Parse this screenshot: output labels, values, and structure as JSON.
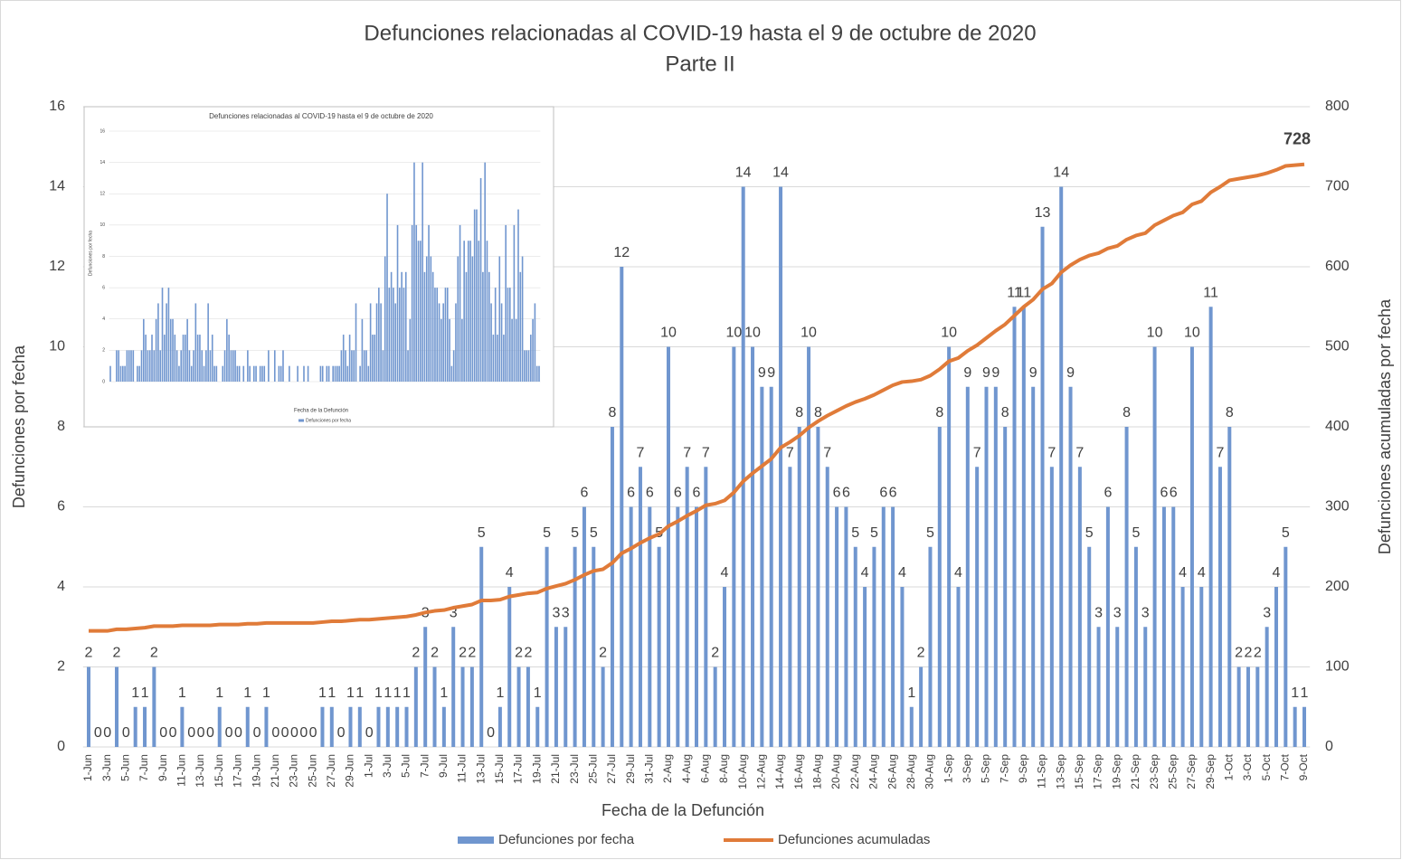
{
  "chart_data": [
    {
      "type": "bar",
      "title": "Defunciones relacionadas al COVID-19 hasta el 9 de octubre de 2020",
      "subtitle": "Parte II",
      "x_label": "Fecha de la Defunción",
      "y_label": "Defunciones por fecha",
      "y2_label": "Defunciones acumuladas por fecha",
      "categories": [
        "1-Jun",
        null,
        "3-Jun",
        null,
        "5-Jun",
        null,
        "7-Jun",
        null,
        "9-Jun",
        null,
        "11-Jun",
        null,
        "13-Jun",
        null,
        "15-Jun",
        null,
        "17-Jun",
        null,
        "19-Jun",
        null,
        "21-Jun",
        null,
        "23-Jun",
        null,
        "25-Jun",
        null,
        "27-Jun",
        null,
        "29-Jun",
        null,
        "1-Jul",
        null,
        "3-Jul",
        null,
        "5-Jul",
        null,
        "7-Jul",
        null,
        "9-Jul",
        null,
        "11-Jul",
        null,
        "13-Jul",
        null,
        "15-Jul",
        null,
        "17-Jul",
        null,
        "19-Jul",
        null,
        "21-Jul",
        null,
        "23-Jul",
        null,
        "25-Jul",
        null,
        "27-Jul",
        null,
        "29-Jul",
        null,
        "31-Jul",
        null,
        "2-Aug",
        null,
        "4-Aug",
        null,
        "6-Aug",
        null,
        "8-Aug",
        null,
        "10-Aug",
        null,
        "12-Aug",
        null,
        "14-Aug",
        null,
        "16-Aug",
        null,
        "18-Aug",
        null,
        "20-Aug",
        null,
        "22-Aug",
        null,
        "24-Aug",
        null,
        "26-Aug",
        null,
        "28-Aug",
        null,
        "30-Aug",
        null,
        "1-Sep",
        null,
        "3-Sep",
        null,
        "5-Sep",
        null,
        "7-Sep",
        null,
        "9-Sep",
        null,
        "11-Sep",
        null,
        "13-Sep",
        null,
        "15-Sep",
        null,
        "17-Sep",
        null,
        "19-Sep",
        null,
        "21-Sep",
        null,
        "23-Sep",
        null,
        "25-Sep",
        null,
        "27-Sep",
        null,
        "29-Sep",
        null,
        "1-Oct",
        null,
        "3-Oct",
        null,
        "5-Oct",
        null,
        "7-Oct",
        null,
        "9-Oct"
      ],
      "series": [
        {
          "name": "Defunciones por fecha",
          "type": "bar",
          "color": "#7096cf",
          "values": [
            2,
            0,
            0,
            2,
            0,
            1,
            1,
            2,
            0,
            0,
            1,
            0,
            0,
            0,
            1,
            0,
            0,
            1,
            0,
            1,
            0,
            0,
            0,
            0,
            0,
            1,
            1,
            0,
            1,
            1,
            0,
            1,
            1,
            1,
            1,
            2,
            3,
            2,
            1,
            3,
            2,
            2,
            5,
            0,
            1,
            4,
            2,
            2,
            1,
            5,
            3,
            3,
            5,
            6,
            5,
            2,
            8,
            12,
            6,
            7,
            6,
            5,
            10,
            6,
            7,
            6,
            7,
            2,
            4,
            10,
            14,
            10,
            9,
            9,
            14,
            7,
            8,
            10,
            8,
            7,
            6,
            6,
            5,
            4,
            5,
            6,
            6,
            4,
            1,
            2,
            5,
            8,
            10,
            4,
            9,
            7,
            9,
            9,
            8,
            11,
            11,
            9,
            13,
            7,
            14,
            9,
            7,
            5,
            3,
            6,
            3,
            8,
            5,
            3,
            10,
            6,
            6,
            4,
            10,
            4,
            11,
            7,
            8,
            2,
            2,
            2,
            3,
            4,
            5,
            1,
            1
          ]
        },
        {
          "name": "Defunciones acumuladas",
          "type": "line",
          "axis": "y2",
          "color": "#e07b39",
          "values": [
            145,
            145,
            145,
            147,
            147,
            148,
            149,
            151,
            151,
            151,
            152,
            152,
            152,
            152,
            153,
            153,
            153,
            154,
            154,
            155,
            155,
            155,
            155,
            155,
            155,
            156,
            157,
            157,
            158,
            159,
            159,
            160,
            161,
            162,
            163,
            165,
            168,
            170,
            171,
            174,
            176,
            178,
            183,
            183,
            184,
            188,
            190,
            192,
            193,
            198,
            201,
            204,
            209,
            215,
            220,
            222,
            230,
            242,
            248,
            255,
            261,
            266,
            276,
            282,
            289,
            295,
            302,
            304,
            308,
            318,
            332,
            342,
            351,
            360,
            374,
            381,
            389,
            399,
            407,
            414,
            420,
            426,
            431,
            435,
            440,
            446,
            452,
            456,
            457,
            459,
            464,
            472,
            482,
            486,
            495,
            502,
            511,
            520,
            528,
            539,
            550,
            559,
            572,
            579,
            593,
            602,
            609,
            614,
            617,
            623,
            626,
            634,
            639,
            642,
            652,
            658,
            664,
            668,
            678,
            682,
            693,
            700,
            708,
            710,
            712,
            714,
            717,
            721,
            726,
            727,
            728
          ]
        }
      ],
      "ylim": [
        0,
        16
      ],
      "yticks": [
        0,
        2,
        4,
        6,
        8,
        10,
        12,
        14,
        16
      ],
      "y2lim": [
        0,
        800
      ],
      "y2ticks": [
        0,
        100,
        200,
        300,
        400,
        500,
        600,
        700,
        800
      ],
      "grid": true,
      "legend": "bottom"
    },
    {
      "type": "bar",
      "title": "Defunciones relacionadas al COVID-19 hasta el 9 de octubre de 2020",
      "x_label": "Fecha de la Defunción",
      "y_label": "Defunciones por fecha",
      "series": [
        {
          "name": "Defunciones por fecha",
          "type": "bar",
          "color": "#7096cf",
          "values": [
            1,
            0,
            0,
            2,
            2,
            1,
            1,
            1,
            2,
            2,
            2,
            2,
            0,
            1,
            1,
            2,
            4,
            3,
            2,
            2,
            3,
            2,
            4,
            5,
            2,
            6,
            3,
            5,
            6,
            4,
            4,
            3,
            2,
            1,
            2,
            3,
            3,
            4,
            2,
            1,
            2,
            5,
            3,
            3,
            2,
            1,
            2,
            5,
            2,
            3,
            1,
            1,
            0,
            0,
            1,
            2,
            4,
            3,
            2,
            2,
            2,
            1,
            1,
            0,
            1,
            0,
            2,
            1,
            0,
            1,
            1,
            0,
            1,
            1,
            1,
            0,
            2,
            0,
            0,
            2,
            0,
            1,
            1,
            2,
            0,
            0,
            1,
            0,
            0,
            0,
            1,
            0,
            0,
            1,
            0,
            1,
            0,
            0,
            0,
            0,
            0,
            1,
            1,
            0,
            1,
            1,
            0,
            1,
            1,
            1,
            1,
            2,
            3,
            2,
            1,
            3,
            2,
            2,
            5,
            0,
            1,
            4,
            2,
            2,
            1,
            5,
            3,
            3,
            5,
            6,
            5,
            2,
            8,
            12,
            6,
            7,
            6,
            5,
            10,
            6,
            7,
            6,
            7,
            2,
            4,
            10,
            14,
            10,
            9,
            9,
            14,
            7,
            8,
            10,
            8,
            7,
            6,
            6,
            5,
            4,
            5,
            6,
            6,
            4,
            1,
            2,
            5,
            8,
            10,
            4,
            9,
            7,
            9,
            9,
            8,
            11,
            11,
            9,
            13,
            7,
            14,
            9,
            7,
            5,
            3,
            6,
            3,
            8,
            5,
            3,
            10,
            6,
            6,
            4,
            10,
            4,
            11,
            7,
            8,
            2,
            2,
            2,
            3,
            4,
            5,
            1,
            1
          ]
        }
      ],
      "ylim": [
        0,
        16
      ],
      "yticks": [
        0,
        2,
        4,
        6,
        8,
        10,
        12,
        14,
        16
      ],
      "grid": true,
      "legend": "bottom"
    }
  ]
}
